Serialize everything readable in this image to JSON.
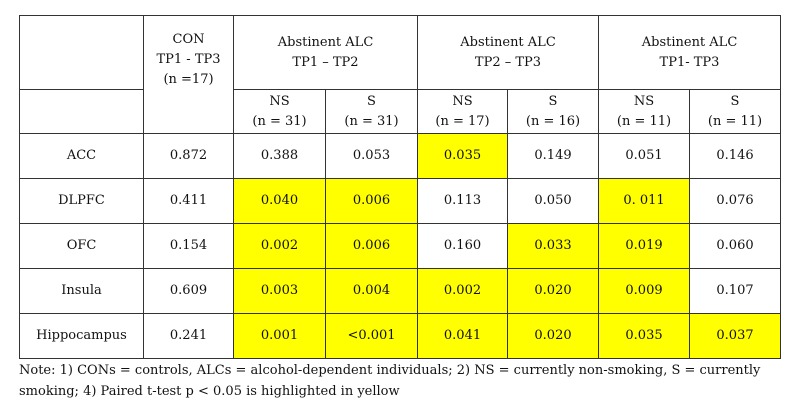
{
  "header": {
    "con_title": "CON",
    "con_tp": "TP1 - TP3",
    "con_n": "(n =17)",
    "groups": [
      {
        "title": "Abstinent ALC",
        "tp": "TP1 – TP2"
      },
      {
        "title": "Abstinent ALC",
        "tp": "TP2 – TP3"
      },
      {
        "title": "Abstinent ALC",
        "tp": "TP1- TP3"
      }
    ],
    "subcols": [
      {
        "label": "NS",
        "n": "(n = 31)"
      },
      {
        "label": "S",
        "n": "(n = 31)"
      },
      {
        "label": "NS",
        "n": "(n = 17)"
      },
      {
        "label": "S",
        "n": "(n = 16)"
      },
      {
        "label": "NS",
        "n": "(n = 11)"
      },
      {
        "label": "S",
        "n": "(n = 11)"
      }
    ]
  },
  "rows": [
    {
      "region": "ACC",
      "values": [
        "0.872",
        "0.388",
        "0.053",
        "0.035",
        "0.149",
        "0.051",
        "0.146"
      ]
    },
    {
      "region": "DLPFC",
      "values": [
        "0.411",
        "0.040",
        "0.006",
        "0.113",
        "0.050",
        "0. 011",
        "0.076"
      ]
    },
    {
      "region": "OFC",
      "values": [
        "0.154",
        "0.002",
        "0.006",
        "0.160",
        "0.033",
        "0.019",
        "0.060"
      ]
    },
    {
      "region": "Insula",
      "values": [
        "0.609",
        "0.003",
        "0.004",
        "0.002",
        "0.020",
        "0.009",
        "0.107"
      ]
    },
    {
      "region": "Hippocampus",
      "values": [
        "0.241",
        "0.001",
        "<0.001",
        "0.041",
        "0.020",
        "0.035",
        "0.037"
      ]
    }
  ],
  "highlight_color": "#ffff00",
  "note": "Note: 1) CONs = controls, ALCs = alcohol-dependent individuals; 2) NS = currently non-smoking, S = currently smoking; 4) Paired t-test p < 0.05 is highlighted in yellow"
}
